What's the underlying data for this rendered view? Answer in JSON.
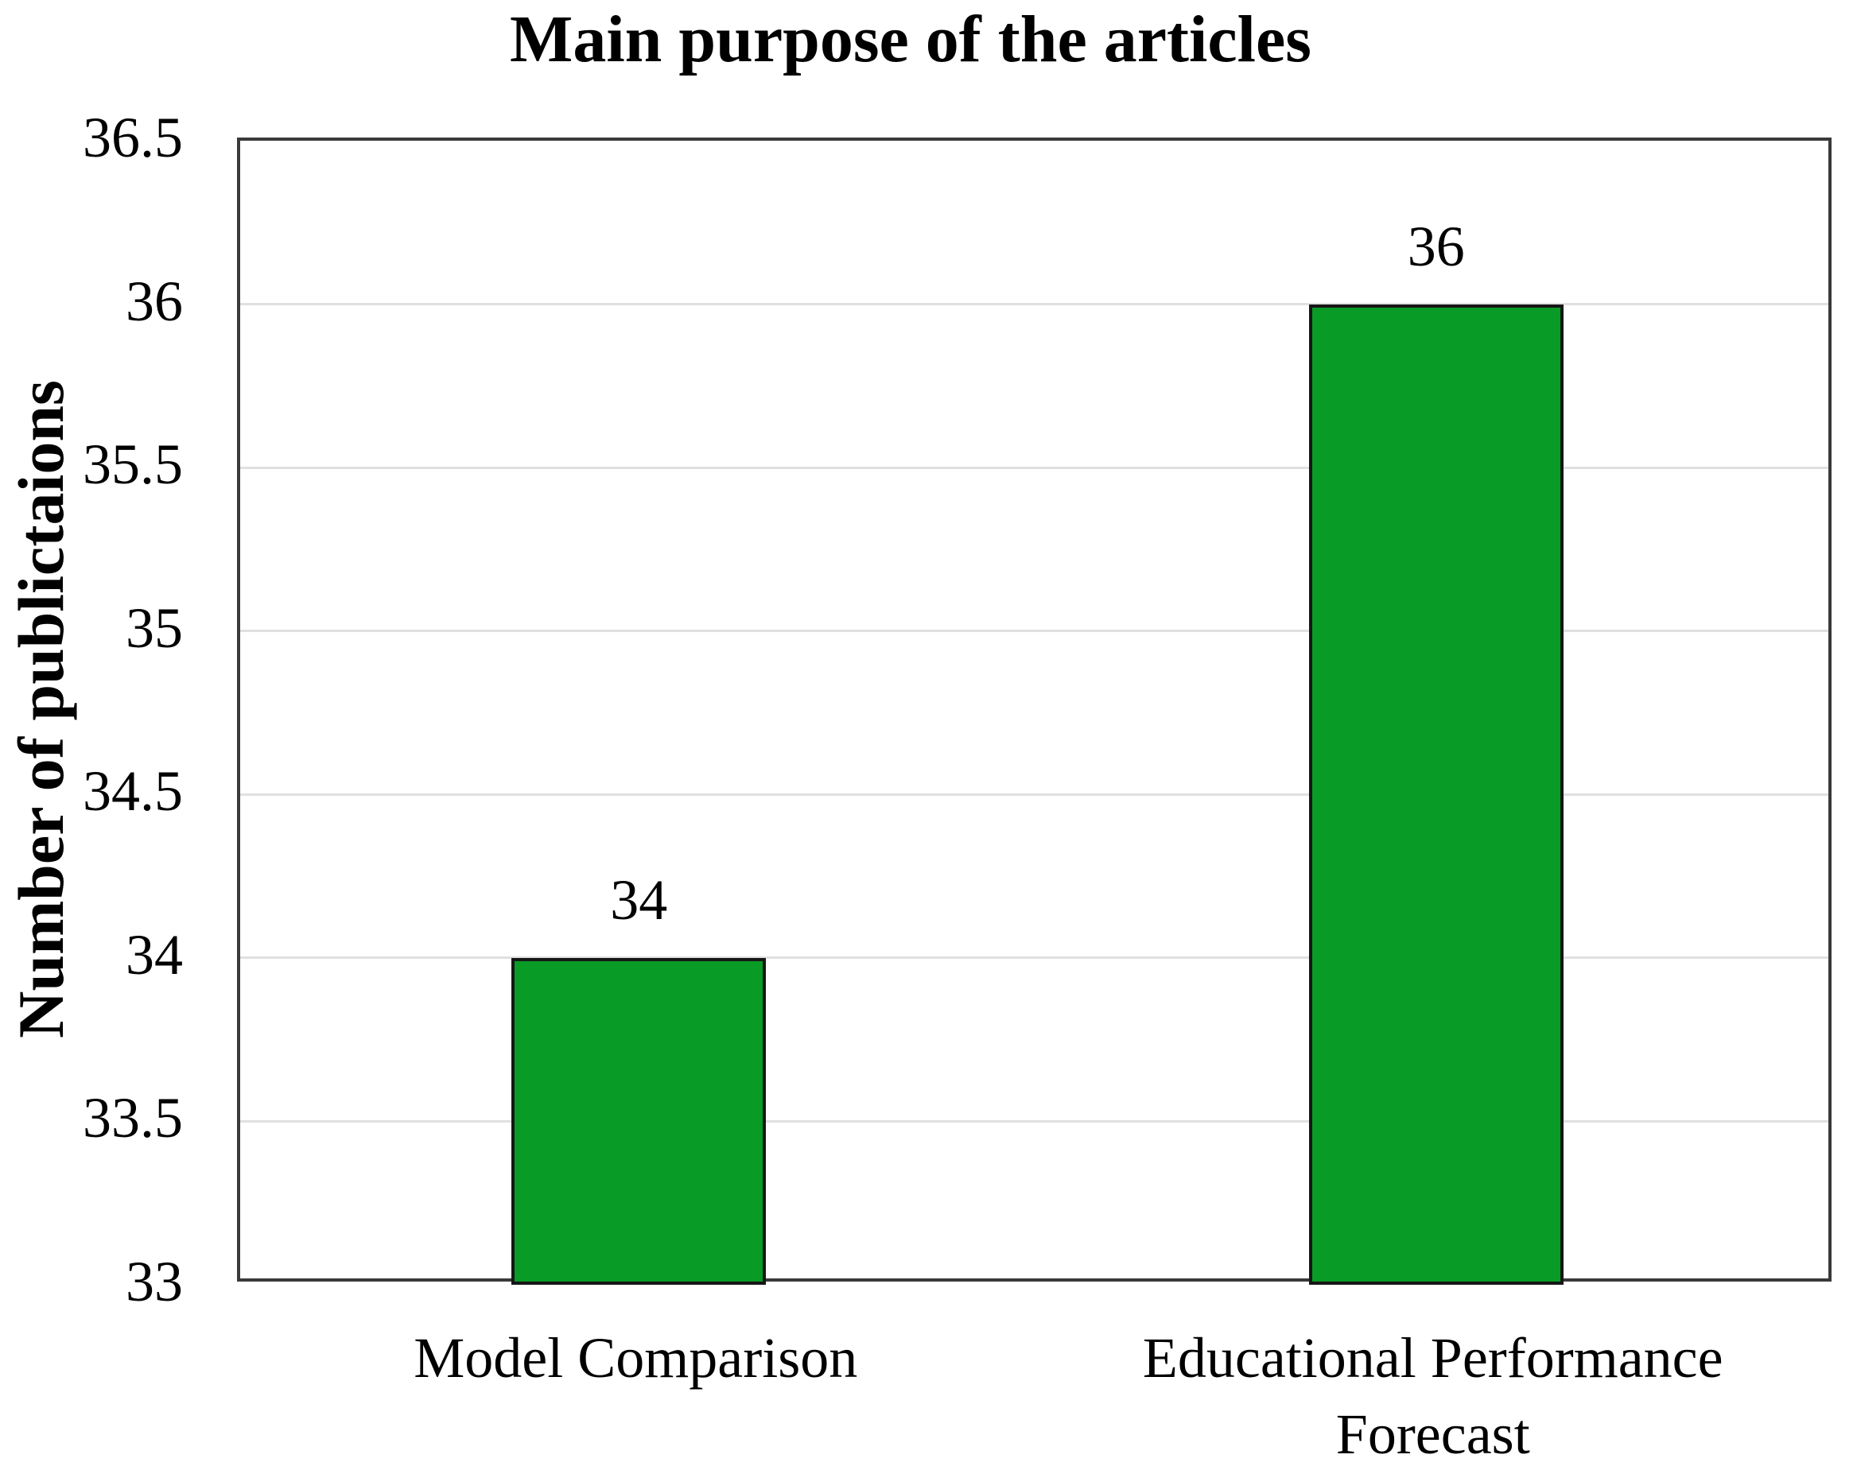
{
  "chart_data": {
    "type": "bar",
    "title": "Main purpose of the articles",
    "ylabel": "Number of publictaions",
    "xlabel": "",
    "categories": [
      "Model Comparison",
      "Educational Performance Forecast"
    ],
    "values": [
      34,
      36
    ],
    "data_labels": [
      "34",
      "36"
    ],
    "ylim": [
      33,
      36.5
    ],
    "ytick_interval": 0.5,
    "yticks": [
      "36.5",
      "36",
      "35.5",
      "35",
      "34.5",
      "34",
      "33.5",
      "33"
    ],
    "grid": "horizontal",
    "legend_position": "none",
    "bar_color": "#089B25",
    "bar_border_color": "#161616",
    "gridline_color": "#E0E0E0",
    "plot_border_color": "#3A3A3A",
    "text_color": "#000000",
    "background_color": "#FFFFFF"
  }
}
